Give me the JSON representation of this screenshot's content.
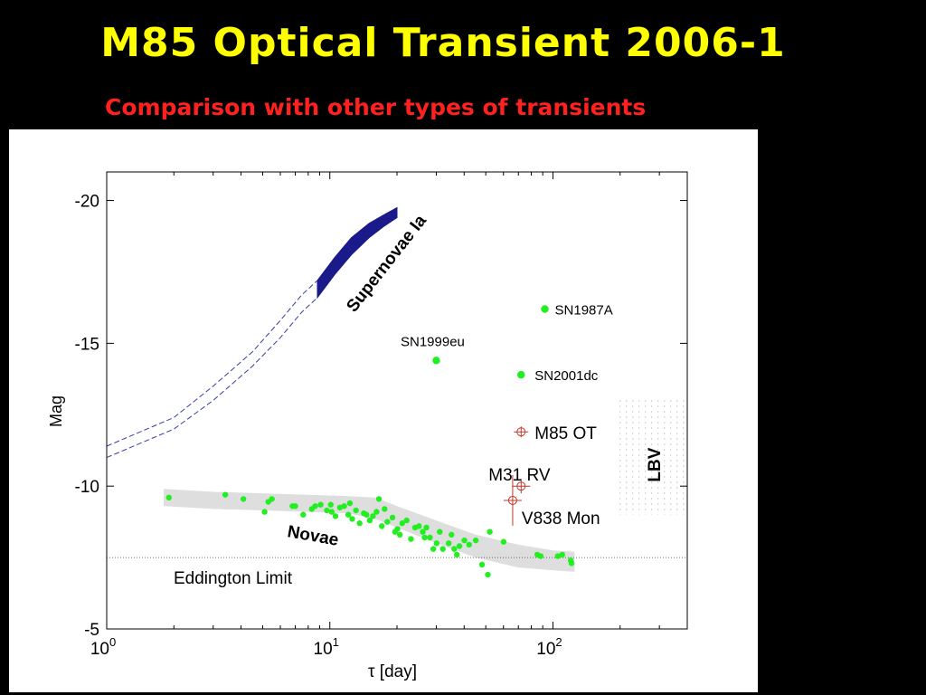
{
  "slide": {
    "title": "M85 Optical Transient 2006-1",
    "subtitle": "Comparison with other types of transients"
  },
  "colors": {
    "background": "#000000",
    "title": "#ffff00",
    "subtitle": "#ff2020",
    "supernova_band": "#1a1a8a",
    "nova_points": "#22ee22",
    "nova_band": "#dedede",
    "transient_markers": "#c0392b",
    "lbv_dots": "#9a9a9a"
  },
  "chart_data": {
    "type": "scatter",
    "xlabel": "τ [day]",
    "ylabel": "Mag",
    "xscale": "log",
    "xlim": [
      1,
      400
    ],
    "ylim": [
      -5,
      -21
    ],
    "x_ticks": [
      {
        "base": "10",
        "exp": "0",
        "value": 1
      },
      {
        "base": "10",
        "exp": "1",
        "value": 10
      },
      {
        "base": "10",
        "exp": "2",
        "value": 100
      }
    ],
    "y_ticks": [
      {
        "label": "-20",
        "value": -20
      },
      {
        "label": "-15",
        "value": -15
      },
      {
        "label": "-10",
        "value": -10
      },
      {
        "label": "-5",
        "value": -5
      }
    ],
    "eddington_limit": {
      "label": "Eddington Limit",
      "mag": -7.5
    },
    "supernovae_ia": {
      "label": "Supernovae Ia",
      "upper_solid": [
        [
          8.8,
          -17.2
        ],
        [
          10.5,
          -18.0
        ],
        [
          12.5,
          -18.7
        ],
        [
          15,
          -19.2
        ],
        [
          17.5,
          -19.5
        ],
        [
          20,
          -19.75
        ]
      ],
      "lower_solid": [
        [
          8.8,
          -16.6
        ],
        [
          10.5,
          -17.4
        ],
        [
          12.5,
          -18.1
        ],
        [
          15,
          -18.7
        ],
        [
          17.5,
          -19.1
        ],
        [
          20,
          -19.4
        ]
      ],
      "upper_dashed": [
        [
          1,
          -11.4
        ],
        [
          2,
          -12.4
        ],
        [
          3,
          -13.5
        ],
        [
          4.5,
          -14.7
        ],
        [
          6,
          -15.8
        ],
        [
          7.5,
          -16.7
        ],
        [
          8.8,
          -17.2
        ]
      ],
      "lower_dashed": [
        [
          1,
          -11.0
        ],
        [
          2,
          -12.0
        ],
        [
          3,
          -13.0
        ],
        [
          4.5,
          -14.2
        ],
        [
          6,
          -15.2
        ],
        [
          7.5,
          -16.1
        ],
        [
          8.8,
          -16.6
        ]
      ]
    },
    "named_transients": [
      {
        "name": "SN1987A",
        "x": 92,
        "y": -16.2
      },
      {
        "name": "SN1999eu",
        "x": 30,
        "y": -14.4
      },
      {
        "name": "SN2001dc",
        "x": 72,
        "y": -13.9
      }
    ],
    "red_transients": [
      {
        "name": "M85 OT",
        "x": 72,
        "y": -11.9
      },
      {
        "name": "M31 RV",
        "x": 72,
        "y": -10.0
      },
      {
        "name": "V838 Mon",
        "x": 66,
        "y": -9.5
      }
    ],
    "lbv": {
      "label": "LBV",
      "xlim": [
        200,
        420
      ],
      "ylim": [
        -9.0,
        -13.0
      ]
    },
    "novae": {
      "label": "Novae",
      "band_upper": [
        [
          1.8,
          -9.9
        ],
        [
          3,
          -9.8
        ],
        [
          5,
          -9.75
        ],
        [
          8,
          -9.7
        ],
        [
          12,
          -9.65
        ],
        [
          16,
          -9.6
        ],
        [
          20,
          -9.3
        ],
        [
          30,
          -8.8
        ],
        [
          45,
          -8.3
        ],
        [
          70,
          -7.95
        ],
        [
          100,
          -7.75
        ],
        [
          125,
          -7.7
        ]
      ],
      "band_lower": [
        [
          1.8,
          -9.3
        ],
        [
          3,
          -9.2
        ],
        [
          5,
          -9.15
        ],
        [
          8,
          -9.1
        ],
        [
          12,
          -9.05
        ],
        [
          16,
          -8.85
        ],
        [
          20,
          -8.55
        ],
        [
          30,
          -8.0
        ],
        [
          45,
          -7.5
        ],
        [
          70,
          -7.15
        ],
        [
          100,
          -7.05
        ],
        [
          125,
          -7.0
        ]
      ],
      "points": [
        [
          1.9,
          -9.6
        ],
        [
          3.4,
          -9.7
        ],
        [
          4.1,
          -9.55
        ],
        [
          5.1,
          -9.1
        ],
        [
          5.3,
          -9.45
        ],
        [
          5.5,
          -9.55
        ],
        [
          6.8,
          -9.3
        ],
        [
          7.0,
          -9.3
        ],
        [
          7.6,
          -9.0
        ],
        [
          8.3,
          -9.2
        ],
        [
          8.6,
          -9.3
        ],
        [
          9.1,
          -9.35
        ],
        [
          9.7,
          -9.15
        ],
        [
          10.1,
          -9.35
        ],
        [
          10.2,
          -9.1
        ],
        [
          10.6,
          -8.95
        ],
        [
          11.1,
          -9.25
        ],
        [
          11.6,
          -9.3
        ],
        [
          12.1,
          -9.0
        ],
        [
          12.3,
          -9.4
        ],
        [
          13.1,
          -9.15
        ],
        [
          13.6,
          -8.7
        ],
        [
          14.2,
          -9.05
        ],
        [
          15.1,
          -8.8
        ],
        [
          15.6,
          -8.95
        ],
        [
          16.2,
          -9.1
        ],
        [
          16.6,
          -9.55
        ],
        [
          17.1,
          -8.6
        ],
        [
          17.6,
          -9.2
        ],
        [
          18.1,
          -8.75
        ],
        [
          19.1,
          -8.9
        ],
        [
          20.1,
          -8.5
        ],
        [
          20.6,
          -8.3
        ],
        [
          21.1,
          -8.7
        ],
        [
          22.1,
          -8.8
        ],
        [
          23.1,
          -8.15
        ],
        [
          24.1,
          -8.55
        ],
        [
          25.1,
          -8.6
        ],
        [
          26.1,
          -8.4
        ],
        [
          27.1,
          -8.55
        ],
        [
          28.1,
          -8.2
        ],
        [
          29.1,
          -7.8
        ],
        [
          30.1,
          -8.0
        ],
        [
          31.1,
          -8.4
        ],
        [
          32.1,
          -7.8
        ],
        [
          34.1,
          -8.0
        ],
        [
          35.1,
          -8.3
        ],
        [
          36.1,
          -7.8
        ],
        [
          37.1,
          -7.6
        ],
        [
          40.1,
          -8.1
        ],
        [
          42.1,
          -7.95
        ],
        [
          45.1,
          -8.1
        ],
        [
          48.1,
          -7.25
        ],
        [
          51.1,
          -6.9
        ],
        [
          52.1,
          -8.4
        ],
        [
          60.1,
          -8.05
        ],
        [
          85.1,
          -7.6
        ],
        [
          88.1,
          -7.55
        ],
        [
          105.1,
          -7.55
        ],
        [
          110.1,
          -7.6
        ],
        [
          120.1,
          -7.4
        ],
        [
          121.1,
          -7.3
        ],
        [
          38.1,
          -7.9
        ],
        [
          26.6,
          -8.2
        ],
        [
          19.6,
          -8.4
        ],
        [
          14.6,
          -9.0
        ],
        [
          12.6,
          -8.85
        ]
      ]
    }
  }
}
